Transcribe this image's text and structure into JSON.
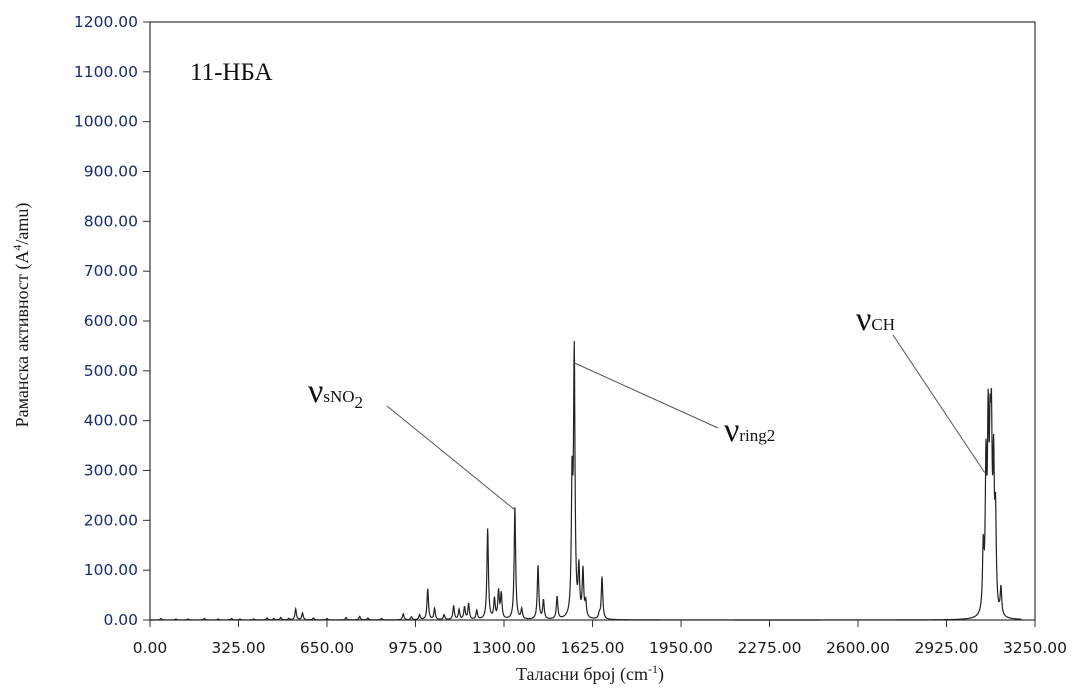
{
  "chart_data": {
    "type": "line",
    "sample_label": "11-НБА",
    "xlabel": "Таласни број (cm",
    "xlabel_sup": "-1",
    "xlabel_end": ")",
    "ylabel": "Раманска активност (A",
    "ylabel_sup": "4",
    "ylabel_end": "/amu)",
    "xlim": [
      0,
      3250
    ],
    "ylim": [
      0,
      1200
    ],
    "x_ticks": [
      0,
      325,
      650,
      975,
      1300,
      1625,
      1950,
      2275,
      2600,
      2925,
      3250
    ],
    "x_tick_labels": [
      "0.00",
      "325.00",
      "650.00",
      "975.00",
      "1300.00",
      "1625.00",
      "1950.00",
      "2275.00",
      "2600.00",
      "2925.00",
      "3250.00"
    ],
    "y_ticks": [
      0,
      100,
      200,
      300,
      400,
      500,
      600,
      700,
      800,
      900,
      1000,
      1100,
      1200
    ],
    "y_tick_labels": [
      "0.00",
      "100.00",
      "200.00",
      "300.00",
      "400.00",
      "500.00",
      "600.00",
      "700.00",
      "800.00",
      "900.00",
      "1000.00",
      "1100.00",
      "1200.00"
    ],
    "grid": false,
    "series": [
      {
        "peaks": [
          [
            40,
            3
          ],
          [
            95,
            2
          ],
          [
            140,
            2
          ],
          [
            200,
            3
          ],
          [
            250,
            2
          ],
          [
            300,
            3
          ],
          [
            330,
            2
          ],
          [
            380,
            2
          ],
          [
            430,
            4
          ],
          [
            455,
            3
          ],
          [
            480,
            5
          ],
          [
            510,
            3
          ],
          [
            535,
            22
          ],
          [
            560,
            14
          ],
          [
            600,
            4
          ],
          [
            650,
            3
          ],
          [
            720,
            5
          ],
          [
            770,
            7
          ],
          [
            800,
            4
          ],
          [
            850,
            3
          ],
          [
            930,
            12
          ],
          [
            960,
            6
          ],
          [
            990,
            10
          ],
          [
            1020,
            62
          ],
          [
            1045,
            22
          ],
          [
            1080,
            10
          ],
          [
            1115,
            28
          ],
          [
            1135,
            20
          ],
          [
            1155,
            25
          ],
          [
            1170,
            32
          ],
          [
            1200,
            18
          ],
          [
            1240,
            182
          ],
          [
            1265,
            40
          ],
          [
            1280,
            55
          ],
          [
            1290,
            50
          ],
          [
            1340,
            225
          ],
          [
            1365,
            20
          ],
          [
            1425,
            108
          ],
          [
            1445,
            38
          ],
          [
            1495,
            45
          ],
          [
            1550,
            255
          ],
          [
            1558,
            520
          ],
          [
            1575,
            95
          ],
          [
            1590,
            95
          ],
          [
            1600,
            30
          ],
          [
            1650,
            10
          ],
          [
            1660,
            85
          ],
          [
            3060,
            125
          ],
          [
            3070,
            280
          ],
          [
            3078,
            345
          ],
          [
            3085,
            270
          ],
          [
            3090,
            310
          ],
          [
            3098,
            270
          ],
          [
            3105,
            180
          ],
          [
            3125,
            55
          ]
        ],
        "line_color": "#222222"
      }
    ],
    "annotations": [
      {
        "symbol": "ν",
        "subscript": "sNO",
        "subscript_sub": "2",
        "target_x": 1340,
        "target_y": 225
      },
      {
        "symbol": "ν",
        "subscript": "ring2",
        "target_x": 1558,
        "target_y": 520
      },
      {
        "symbol": "ν",
        "subscript": "CH",
        "target_x": 3065,
        "target_y": 300
      }
    ],
    "colors": {
      "axis": "#333333",
      "y_tick_text": "#1a2a6c",
      "leader_line": "#555555"
    }
  }
}
